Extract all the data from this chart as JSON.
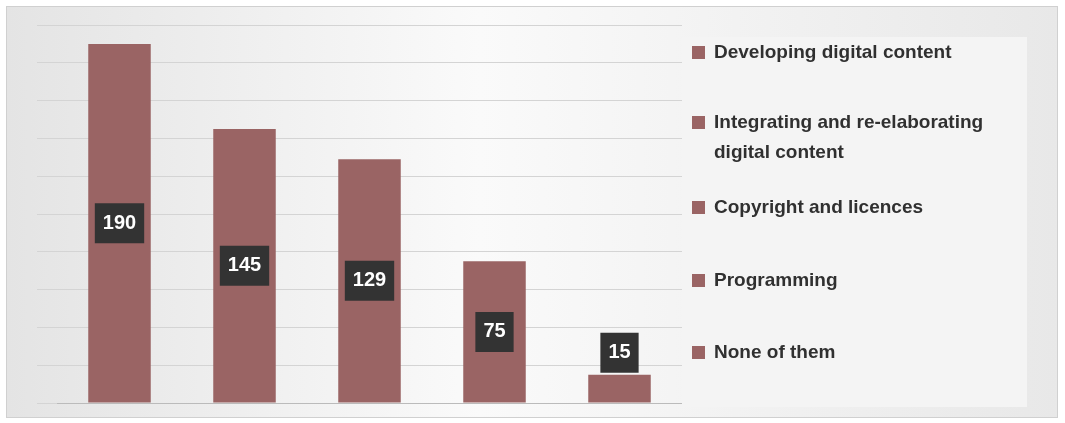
{
  "chart_data": {
    "type": "bar",
    "categories": [
      null,
      null,
      null,
      null,
      null
    ],
    "series": [
      {
        "name": "Developing digital content",
        "color": "#9a6464",
        "values": [
          190,
          null,
          null,
          null,
          null
        ]
      },
      {
        "name": "Integrating and re-elaborating digital content",
        "color": "#9a6464",
        "values": [
          null,
          145,
          null,
          null,
          null
        ]
      },
      {
        "name": "Copyright and licences",
        "color": "#9a6464",
        "values": [
          null,
          null,
          129,
          null,
          null
        ]
      },
      {
        "name": "Programming",
        "color": "#9a6464",
        "values": [
          null,
          null,
          null,
          75,
          null
        ]
      },
      {
        "name": "None of them",
        "color": "#9a6464",
        "values": [
          null,
          null,
          null,
          null,
          15
        ]
      }
    ],
    "stacked": true,
    "ylim": [
      0,
      200
    ],
    "yticks": [
      {
        "value": 0,
        "label": null
      },
      {
        "value": 20,
        "label": null
      },
      {
        "value": 40,
        "label": null
      },
      {
        "value": 60,
        "label": null
      },
      {
        "value": 80,
        "label": null
      },
      {
        "value": 100,
        "label": null
      },
      {
        "value": 120,
        "label": null
      },
      {
        "value": 140,
        "label": null
      },
      {
        "value": 160,
        "label": null
      },
      {
        "value": 180,
        "label": null
      },
      {
        "value": 200,
        "label": null
      }
    ],
    "tick_labels": false,
    "grid": "y",
    "legend": "right",
    "data_labels": true
  }
}
